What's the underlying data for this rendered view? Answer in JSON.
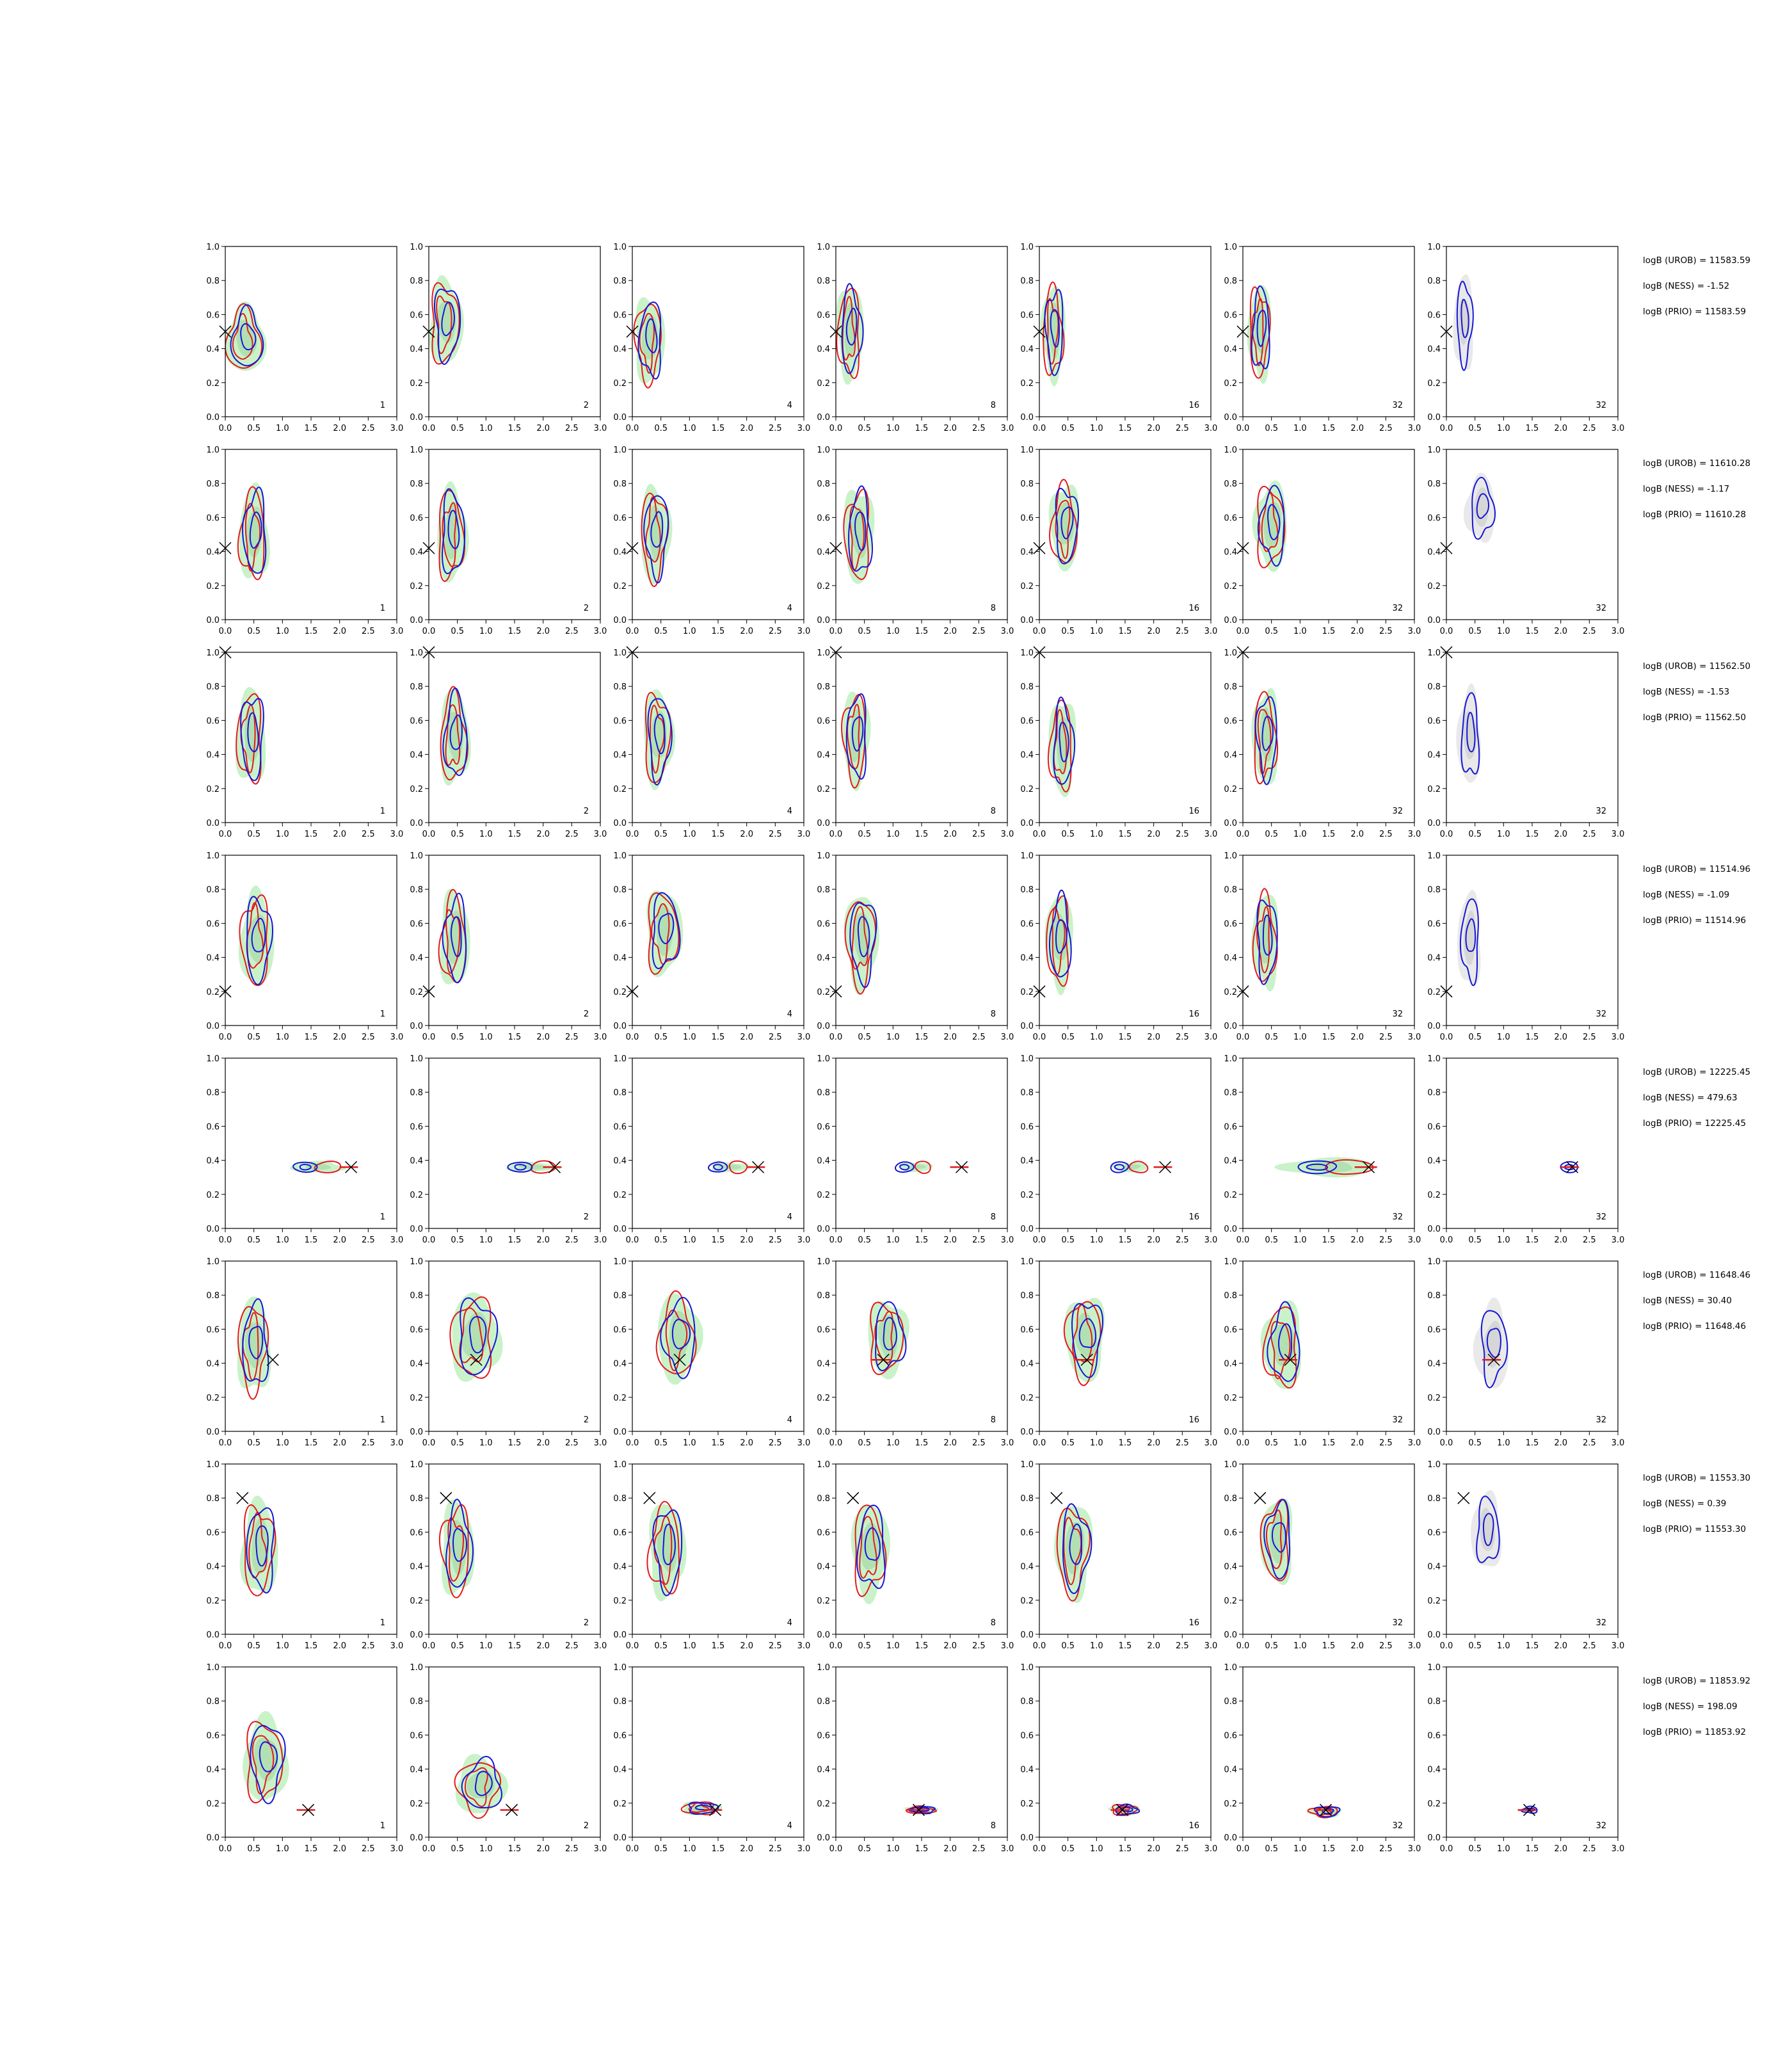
{
  "figure": {
    "layout": {
      "rows": 8,
      "cols": 7
    },
    "colors": {
      "fill_outer": "#c9f2c9",
      "fill_inner": "#b2e0b2",
      "ref_fill_outer": "#e9e9e9",
      "ref_fill_inner": "#d6d6d6",
      "red": "#e31a1c",
      "blue": "#1616d6",
      "marker": "#000000"
    }
  },
  "chart_data": {
    "type": "contour-grid",
    "xlim": [
      0.0,
      3.0
    ],
    "ylim": [
      0.0,
      1.0
    ],
    "xticks": [
      "0.0",
      "0.5",
      "1.0",
      "1.5",
      "2.0",
      "2.5",
      "3.0"
    ],
    "yticks": [
      "0.0",
      "0.2",
      "0.4",
      "0.6",
      "0.8",
      "1.0"
    ],
    "panel_labels": [
      "1",
      "2",
      "4",
      "8",
      "16",
      "32",
      "32"
    ],
    "rows": [
      {
        "truth": [
          0.0,
          0.5
        ],
        "annotations": [
          "logB (UROB) = 11583.59",
          "logB (NESS) = -1.52",
          "logB (PRIO) = 11583.59"
        ],
        "shape": "tall",
        "cx": [
          0.35,
          0.3,
          0.3,
          0.25,
          0.25,
          0.3,
          0.3
        ],
        "cy": [
          0.45,
          0.55,
          0.45,
          0.5,
          0.5,
          0.5,
          0.55
        ],
        "sx": [
          0.6,
          0.5,
          0.45,
          0.4,
          0.35,
          0.35,
          0.3
        ],
        "sy": [
          0.35,
          0.45,
          0.45,
          0.5,
          0.5,
          0.5,
          0.5
        ]
      },
      {
        "truth": [
          0.0,
          0.42
        ],
        "annotations": [
          "logB (UROB) = 11610.28",
          "logB (NESS) = -1.17",
          "logB (PRIO) = 11610.28"
        ],
        "shape": "tall",
        "cx": [
          0.5,
          0.4,
          0.4,
          0.4,
          0.45,
          0.5,
          0.6
        ],
        "cy": [
          0.5,
          0.5,
          0.5,
          0.5,
          0.55,
          0.55,
          0.65
        ],
        "sx": [
          0.45,
          0.45,
          0.45,
          0.45,
          0.45,
          0.5,
          0.45
        ],
        "sy": [
          0.5,
          0.5,
          0.5,
          0.5,
          0.45,
          0.45,
          0.35
        ]
      },
      {
        "truth": [
          0.0,
          1.0
        ],
        "annotations": [
          "logB (UROB) = 11562.50",
          "logB (NESS) = -1.53",
          "logB (PRIO) = 11562.50"
        ],
        "shape": "tall",
        "cx": [
          0.45,
          0.45,
          0.45,
          0.35,
          0.4,
          0.4,
          0.4
        ],
        "cy": [
          0.5,
          0.5,
          0.5,
          0.5,
          0.45,
          0.5,
          0.5
        ],
        "sx": [
          0.45,
          0.45,
          0.45,
          0.4,
          0.4,
          0.4,
          0.35
        ],
        "sy": [
          0.5,
          0.5,
          0.5,
          0.5,
          0.5,
          0.5,
          0.5
        ]
      },
      {
        "truth": [
          0.0,
          0.2
        ],
        "annotations": [
          "logB (UROB) = 11514.96",
          "logB (NESS) = -1.09",
          "logB (PRIO) = 11514.96"
        ],
        "shape": "tall",
        "cx": [
          0.55,
          0.45,
          0.55,
          0.45,
          0.35,
          0.4,
          0.4
        ],
        "cy": [
          0.5,
          0.5,
          0.55,
          0.5,
          0.5,
          0.5,
          0.5
        ],
        "sx": [
          0.5,
          0.45,
          0.55,
          0.5,
          0.4,
          0.4,
          0.35
        ],
        "sy": [
          0.5,
          0.5,
          0.45,
          0.5,
          0.5,
          0.5,
          0.5
        ]
      },
      {
        "truth": [
          2.2,
          0.36
        ],
        "annotations": [
          "logB (UROB) = 12225.45",
          "logB (NESS) = 479.63",
          "logB (PRIO) = 12225.45"
        ],
        "shape": "flat",
        "cx": [
          1.6,
          1.8,
          1.7,
          1.4,
          1.6,
          1.5,
          2.15
        ],
        "cy": [
          0.36,
          0.36,
          0.36,
          0.36,
          0.36,
          0.36,
          0.36
        ],
        "sx": [
          0.8,
          0.8,
          0.6,
          0.5,
          0.55,
          1.4,
          0.2
        ],
        "sy": [
          0.06,
          0.05,
          0.05,
          0.05,
          0.05,
          0.1,
          0.02
        ]
      },
      {
        "truth": [
          0.83,
          0.42
        ],
        "annotations": [
          "logB (UROB) = 11648.46",
          "logB (NESS) = 30.40",
          "logB (PRIO) = 11648.46"
        ],
        "shape": "mixed",
        "cx": [
          0.5,
          0.8,
          0.8,
          0.9,
          0.8,
          0.7,
          0.8
        ],
        "cy": [
          0.5,
          0.55,
          0.55,
          0.55,
          0.55,
          0.5,
          0.5
        ],
        "sx": [
          0.5,
          0.75,
          0.65,
          0.6,
          0.6,
          0.6,
          0.5
        ],
        "sy": [
          0.5,
          0.45,
          0.45,
          0.4,
          0.45,
          0.45,
          0.45
        ]
      },
      {
        "truth": [
          0.3,
          0.8
        ],
        "annotations": [
          "logB (UROB) = 11553.30",
          "logB (NESS) = 0.39",
          "logB (PRIO) = 11553.30"
        ],
        "shape": "mixed",
        "cx": [
          0.6,
          0.5,
          0.6,
          0.6,
          0.6,
          0.6,
          0.7
        ],
        "cy": [
          0.5,
          0.5,
          0.5,
          0.5,
          0.5,
          0.55,
          0.6
        ],
        "sx": [
          0.55,
          0.5,
          0.55,
          0.55,
          0.55,
          0.5,
          0.45
        ],
        "sy": [
          0.5,
          0.5,
          0.5,
          0.5,
          0.5,
          0.45,
          0.4
        ]
      },
      {
        "truth": [
          1.45,
          0.16
        ],
        "annotations": [
          "logB (UROB) = 11853.92",
          "logB (NESS) = 198.09",
          "logB (PRIO) = 11853.92"
        ],
        "shape": "shrink",
        "cx": [
          0.7,
          0.9,
          1.2,
          1.5,
          1.5,
          1.45,
          1.45
        ],
        "cy": [
          0.45,
          0.3,
          0.17,
          0.16,
          0.16,
          0.15,
          0.16
        ],
        "sx": [
          0.65,
          0.75,
          0.6,
          0.5,
          0.45,
          0.5,
          0.3
        ],
        "sy": [
          0.45,
          0.3,
          0.07,
          0.04,
          0.06,
          0.06,
          0.04
        ]
      }
    ]
  }
}
